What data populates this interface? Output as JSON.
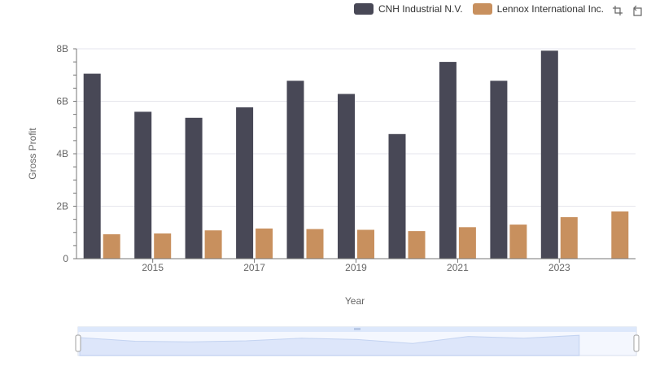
{
  "chart_data": {
    "type": "bar",
    "x": [
      2014,
      2015,
      2016,
      2017,
      2018,
      2019,
      2020,
      2021,
      2022,
      2023,
      2024
    ],
    "x_tick_labels": [
      "2015",
      "2017",
      "2019",
      "2021",
      "2023"
    ],
    "series": [
      {
        "name": "CNH Industrial N.V.",
        "color": "#484856",
        "values": [
          7.05,
          5.6,
          5.37,
          5.77,
          6.78,
          6.28,
          4.75,
          7.5,
          6.78,
          7.93,
          null
        ]
      },
      {
        "name": "Lennox International Inc.",
        "color": "#c8905e",
        "values": [
          0.93,
          0.96,
          1.08,
          1.15,
          1.13,
          1.1,
          1.05,
          1.2,
          1.3,
          1.58,
          1.8
        ]
      }
    ],
    "xlabel": "Year",
    "ylabel": "Gross Profit",
    "ylim": [
      0,
      8
    ],
    "y_ticks": [
      0,
      2,
      4,
      6,
      8
    ],
    "y_tick_labels": [
      "0",
      "2B",
      "4B",
      "6B",
      "8B"
    ],
    "grid": true,
    "legend_position": "top-right"
  },
  "toolbar": {
    "zoom_icon": "zoom-box-icon",
    "reset_icon": "restore-icon"
  },
  "colors": {
    "slider_fill": "#dde8fb",
    "slider_stroke": "#a7bde8"
  }
}
